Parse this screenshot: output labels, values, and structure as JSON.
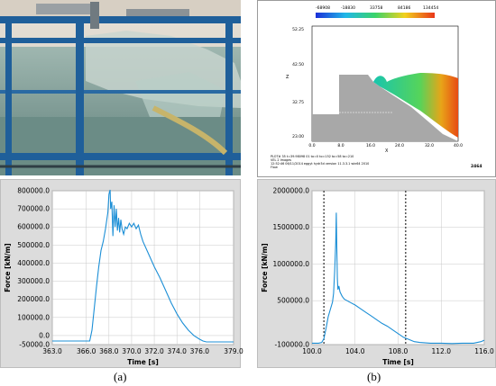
{
  "labels": {
    "a": "(a)",
    "b": "(b)"
  },
  "simulation": {
    "legend_values": [
      "-68908",
      "-18830",
      "33758",
      "84186",
      "134454"
    ],
    "y_ticks": [
      "52.25",
      "42.50",
      "32.75",
      "23.00"
    ],
    "x_ticks": [
      "0.0",
      "8.0",
      "16.0",
      "24.0",
      "32.0",
      "40.0"
    ],
    "x_axis": "X",
    "y_axis": "Z",
    "footer_lines": [
      "PLOT# 35 t=39.98098 01  to=0 to=152 to=58  to=210",
      "VEL 2          Images",
      "12:52:46 06/11/2014 eggyt     hydr3d   version  11.3.3.1  win64 2010",
      "Flow"
    ],
    "frame_number": "2464",
    "colors": {
      "water_left": "#18c5ae",
      "water_right": "#56d45a",
      "hot": "#e8a418",
      "peak": "#e74b14",
      "structure": "#a8a8a8"
    }
  },
  "chart_data": [
    {
      "type": "line",
      "title": "",
      "xlabel": "Time [s]",
      "ylabel": "Force [kN/m]",
      "xlim": [
        363.0,
        379.0
      ],
      "ylim": [
        -50000.0,
        800000.0
      ],
      "x_ticks": [
        "363.0",
        "366.0",
        "368.0",
        "370.0",
        "372.0",
        "374.0",
        "376.0",
        "379.0"
      ],
      "x_tick_values": [
        363,
        366,
        368,
        370,
        372,
        374,
        376,
        379
      ],
      "y_ticks": [
        "800000.0",
        "700000.0",
        "600000.0",
        "500000.0",
        "400000.0",
        "300000.0",
        "200000.0",
        "100000.0",
        "0.0",
        "-50000.0"
      ],
      "y_tick_values": [
        800000,
        700000,
        600000,
        500000,
        400000,
        300000,
        200000,
        100000,
        0,
        -50000
      ],
      "grid": true,
      "color": "#1c8fd6",
      "x": [
        363.0,
        365.5,
        366.3,
        366.5,
        366.7,
        366.9,
        367.1,
        367.3,
        367.5,
        367.7,
        367.9,
        368.0,
        368.1,
        368.15,
        368.25,
        368.35,
        368.45,
        368.55,
        368.65,
        368.75,
        368.85,
        368.95,
        369.05,
        369.15,
        369.3,
        369.45,
        369.6,
        369.8,
        370.0,
        370.2,
        370.4,
        370.6,
        370.8,
        371.0,
        371.5,
        372.0,
        372.5,
        373.0,
        373.5,
        374.0,
        374.5,
        375.0,
        375.5,
        376.0,
        376.3,
        376.6,
        377.0,
        377.5,
        379.0
      ],
      "y": [
        -30000,
        -30000,
        -30000,
        30000,
        150000,
        270000,
        380000,
        470000,
        520000,
        590000,
        680000,
        780000,
        805000,
        700000,
        740000,
        550000,
        720000,
        600000,
        700000,
        580000,
        650000,
        570000,
        640000,
        590000,
        560000,
        600000,
        590000,
        620000,
        600000,
        620000,
        590000,
        610000,
        560000,
        520000,
        450000,
        380000,
        320000,
        250000,
        180000,
        120000,
        70000,
        30000,
        0,
        -20000,
        -30000,
        -35000,
        -35000,
        -35000,
        -35000
      ]
    },
    {
      "type": "line",
      "title": "",
      "xlabel": "Time [s]",
      "ylabel": "Force [kN/m]",
      "xlim": [
        100.0,
        116.0
      ],
      "ylim": [
        -100000.0,
        2000000.0
      ],
      "x_ticks": [
        "100.0",
        "104.0",
        "108.0",
        "112.0",
        "116.0"
      ],
      "x_tick_values": [
        100,
        104,
        108,
        112,
        116
      ],
      "y_ticks": [
        "2000000.0",
        "1500000.0",
        "1000000.0",
        "500000.0",
        "-100000.0"
      ],
      "y_tick_values": [
        2000000,
        1500000,
        1000000,
        500000,
        -100000
      ],
      "grid": true,
      "color": "#1c8fd6",
      "vertical_markers": [
        101.1,
        108.7
      ],
      "x": [
        100.0,
        100.6,
        100.9,
        101.1,
        101.3,
        101.5,
        101.7,
        101.9,
        102.0,
        102.1,
        102.2,
        102.25,
        102.3,
        102.35,
        102.4,
        102.5,
        102.6,
        102.8,
        103.0,
        103.5,
        104.0,
        104.5,
        105.0,
        105.5,
        106.0,
        106.5,
        107.0,
        107.5,
        108.0,
        108.5,
        109.0,
        109.5,
        110.0,
        111.0,
        112.0,
        113.0,
        114.0,
        115.0,
        115.7,
        116.0
      ],
      "y": [
        -80000,
        -80000,
        -70000,
        -20000,
        120000,
        280000,
        380000,
        480000,
        600000,
        900000,
        1300000,
        1700000,
        1200000,
        800000,
        650000,
        700000,
        620000,
        560000,
        520000,
        480000,
        440000,
        390000,
        340000,
        290000,
        240000,
        190000,
        150000,
        100000,
        50000,
        0,
        -30000,
        -60000,
        -70000,
        -80000,
        -80000,
        -85000,
        -80000,
        -80000,
        -60000,
        -40000
      ]
    }
  ]
}
